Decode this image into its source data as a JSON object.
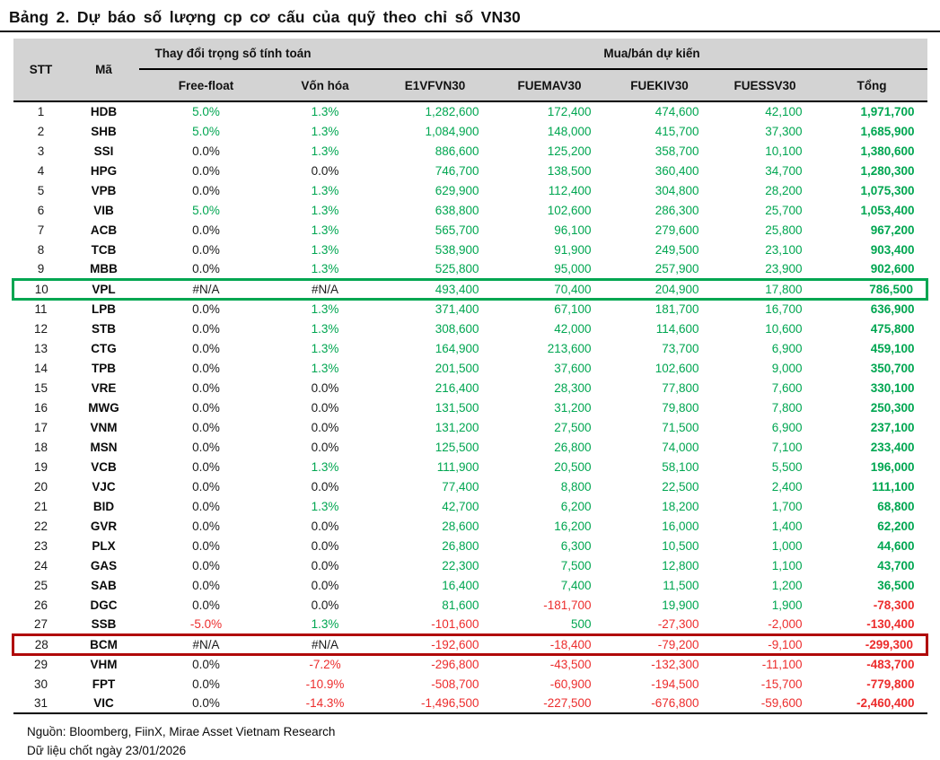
{
  "title": "Bảng 2. Dự báo số lượng cp cơ cấu của quỹ theo chỉ số VN30",
  "colors": {
    "positive": "#00A651",
    "negative": "#EC2D2D",
    "neutral": "#1a1a1a",
    "header_bg": "#D3D3D3",
    "highlight_green_border": "#00A651",
    "highlight_red_border": "#B00909"
  },
  "table": {
    "groups": [
      {
        "label": "Thay đổi trọng số tính toán"
      },
      {
        "label": "Mua/bán dự kiến"
      }
    ],
    "columns": [
      "STT",
      "Mã",
      "Free-float",
      "Vốn hóa",
      "E1VFVN30",
      "FUEMAV30",
      "FUEKIV30",
      "FUESSV30",
      "Tổng"
    ],
    "rows": [
      {
        "stt": "1",
        "ma": "HDB",
        "ff": "5.0%",
        "vh": "1.3%",
        "e1": "1,282,600",
        "mav": "172,400",
        "kiv": "474,600",
        "ssv": "42,100",
        "tong": "1,971,700",
        "highlight": null
      },
      {
        "stt": "2",
        "ma": "SHB",
        "ff": "5.0%",
        "vh": "1.3%",
        "e1": "1,084,900",
        "mav": "148,000",
        "kiv": "415,700",
        "ssv": "37,300",
        "tong": "1,685,900",
        "highlight": null
      },
      {
        "stt": "3",
        "ma": "SSI",
        "ff": "0.0%",
        "vh": "1.3%",
        "e1": "886,600",
        "mav": "125,200",
        "kiv": "358,700",
        "ssv": "10,100",
        "tong": "1,380,600",
        "highlight": null
      },
      {
        "stt": "4",
        "ma": "HPG",
        "ff": "0.0%",
        "vh": "0.0%",
        "e1": "746,700",
        "mav": "138,500",
        "kiv": "360,400",
        "ssv": "34,700",
        "tong": "1,280,300",
        "highlight": null
      },
      {
        "stt": "5",
        "ma": "VPB",
        "ff": "0.0%",
        "vh": "1.3%",
        "e1": "629,900",
        "mav": "112,400",
        "kiv": "304,800",
        "ssv": "28,200",
        "tong": "1,075,300",
        "highlight": null
      },
      {
        "stt": "6",
        "ma": "VIB",
        "ff": "5.0%",
        "vh": "1.3%",
        "e1": "638,800",
        "mav": "102,600",
        "kiv": "286,300",
        "ssv": "25,700",
        "tong": "1,053,400",
        "highlight": null
      },
      {
        "stt": "7",
        "ma": "ACB",
        "ff": "0.0%",
        "vh": "1.3%",
        "e1": "565,700",
        "mav": "96,100",
        "kiv": "279,600",
        "ssv": "25,800",
        "tong": "967,200",
        "highlight": null
      },
      {
        "stt": "8",
        "ma": "TCB",
        "ff": "0.0%",
        "vh": "1.3%",
        "e1": "538,900",
        "mav": "91,900",
        "kiv": "249,500",
        "ssv": "23,100",
        "tong": "903,400",
        "highlight": null
      },
      {
        "stt": "9",
        "ma": "MBB",
        "ff": "0.0%",
        "vh": "1.3%",
        "e1": "525,800",
        "mav": "95,000",
        "kiv": "257,900",
        "ssv": "23,900",
        "tong": "902,600",
        "highlight": null
      },
      {
        "stt": "10",
        "ma": "VPL",
        "ff": "#N/A",
        "vh": "#N/A",
        "e1": "493,400",
        "mav": "70,400",
        "kiv": "204,900",
        "ssv": "17,800",
        "tong": "786,500",
        "highlight": "green"
      },
      {
        "stt": "11",
        "ma": "LPB",
        "ff": "0.0%",
        "vh": "1.3%",
        "e1": "371,400",
        "mav": "67,100",
        "kiv": "181,700",
        "ssv": "16,700",
        "tong": "636,900",
        "highlight": null
      },
      {
        "stt": "12",
        "ma": "STB",
        "ff": "0.0%",
        "vh": "1.3%",
        "e1": "308,600",
        "mav": "42,000",
        "kiv": "114,600",
        "ssv": "10,600",
        "tong": "475,800",
        "highlight": null
      },
      {
        "stt": "13",
        "ma": "CTG",
        "ff": "0.0%",
        "vh": "1.3%",
        "e1": "164,900",
        "mav": "213,600",
        "kiv": "73,700",
        "ssv": "6,900",
        "tong": "459,100",
        "highlight": null
      },
      {
        "stt": "14",
        "ma": "TPB",
        "ff": "0.0%",
        "vh": "1.3%",
        "e1": "201,500",
        "mav": "37,600",
        "kiv": "102,600",
        "ssv": "9,000",
        "tong": "350,700",
        "highlight": null
      },
      {
        "stt": "15",
        "ma": "VRE",
        "ff": "0.0%",
        "vh": "0.0%",
        "e1": "216,400",
        "mav": "28,300",
        "kiv": "77,800",
        "ssv": "7,600",
        "tong": "330,100",
        "highlight": null
      },
      {
        "stt": "16",
        "ma": "MWG",
        "ff": "0.0%",
        "vh": "0.0%",
        "e1": "131,500",
        "mav": "31,200",
        "kiv": "79,800",
        "ssv": "7,800",
        "tong": "250,300",
        "highlight": null
      },
      {
        "stt": "17",
        "ma": "VNM",
        "ff": "0.0%",
        "vh": "0.0%",
        "e1": "131,200",
        "mav": "27,500",
        "kiv": "71,500",
        "ssv": "6,900",
        "tong": "237,100",
        "highlight": null
      },
      {
        "stt": "18",
        "ma": "MSN",
        "ff": "0.0%",
        "vh": "0.0%",
        "e1": "125,500",
        "mav": "26,800",
        "kiv": "74,000",
        "ssv": "7,100",
        "tong": "233,400",
        "highlight": null
      },
      {
        "stt": "19",
        "ma": "VCB",
        "ff": "0.0%",
        "vh": "1.3%",
        "e1": "111,900",
        "mav": "20,500",
        "kiv": "58,100",
        "ssv": "5,500",
        "tong": "196,000",
        "highlight": null
      },
      {
        "stt": "20",
        "ma": "VJC",
        "ff": "0.0%",
        "vh": "0.0%",
        "e1": "77,400",
        "mav": "8,800",
        "kiv": "22,500",
        "ssv": "2,400",
        "tong": "111,100",
        "highlight": null
      },
      {
        "stt": "21",
        "ma": "BID",
        "ff": "0.0%",
        "vh": "1.3%",
        "e1": "42,700",
        "mav": "6,200",
        "kiv": "18,200",
        "ssv": "1,700",
        "tong": "68,800",
        "highlight": null
      },
      {
        "stt": "22",
        "ma": "GVR",
        "ff": "0.0%",
        "vh": "0.0%",
        "e1": "28,600",
        "mav": "16,200",
        "kiv": "16,000",
        "ssv": "1,400",
        "tong": "62,200",
        "highlight": null
      },
      {
        "stt": "23",
        "ma": "PLX",
        "ff": "0.0%",
        "vh": "0.0%",
        "e1": "26,800",
        "mav": "6,300",
        "kiv": "10,500",
        "ssv": "1,000",
        "tong": "44,600",
        "highlight": null
      },
      {
        "stt": "24",
        "ma": "GAS",
        "ff": "0.0%",
        "vh": "0.0%",
        "e1": "22,300",
        "mav": "7,500",
        "kiv": "12,800",
        "ssv": "1,100",
        "tong": "43,700",
        "highlight": null
      },
      {
        "stt": "25",
        "ma": "SAB",
        "ff": "0.0%",
        "vh": "0.0%",
        "e1": "16,400",
        "mav": "7,400",
        "kiv": "11,500",
        "ssv": "1,200",
        "tong": "36,500",
        "highlight": null
      },
      {
        "stt": "26",
        "ma": "DGC",
        "ff": "0.0%",
        "vh": "0.0%",
        "e1": "81,600",
        "mav": "-181,700",
        "kiv": "19,900",
        "ssv": "1,900",
        "tong": "-78,300",
        "highlight": null
      },
      {
        "stt": "27",
        "ma": "SSB",
        "ff": "-5.0%",
        "vh": "1.3%",
        "e1": "-101,600",
        "mav": "500",
        "kiv": "-27,300",
        "ssv": "-2,000",
        "tong": "-130,400",
        "highlight": null
      },
      {
        "stt": "28",
        "ma": "BCM",
        "ff": "#N/A",
        "vh": "#N/A",
        "e1": "-192,600",
        "mav": "-18,400",
        "kiv": "-79,200",
        "ssv": "-9,100",
        "tong": "-299,300",
        "highlight": "red"
      },
      {
        "stt": "29",
        "ma": "VHM",
        "ff": "0.0%",
        "vh": "-7.2%",
        "e1": "-296,800",
        "mav": "-43,500",
        "kiv": "-132,300",
        "ssv": "-11,100",
        "tong": "-483,700",
        "highlight": null
      },
      {
        "stt": "30",
        "ma": "FPT",
        "ff": "0.0%",
        "vh": "-10.9%",
        "e1": "-508,700",
        "mav": "-60,900",
        "kiv": "-194,500",
        "ssv": "-15,700",
        "tong": "-779,800",
        "highlight": null
      },
      {
        "stt": "31",
        "ma": "VIC",
        "ff": "0.0%",
        "vh": "-14.3%",
        "e1": "-1,496,500",
        "mav": "-227,500",
        "kiv": "-676,800",
        "ssv": "-59,600",
        "tong": "-2,460,400",
        "highlight": null
      }
    ]
  },
  "footer": {
    "source": "Nguồn: Bloomberg, FiinX, Mirae Asset Vietnam Research",
    "cutoff": "Dữ liệu chốt ngày 23/01/2026"
  }
}
